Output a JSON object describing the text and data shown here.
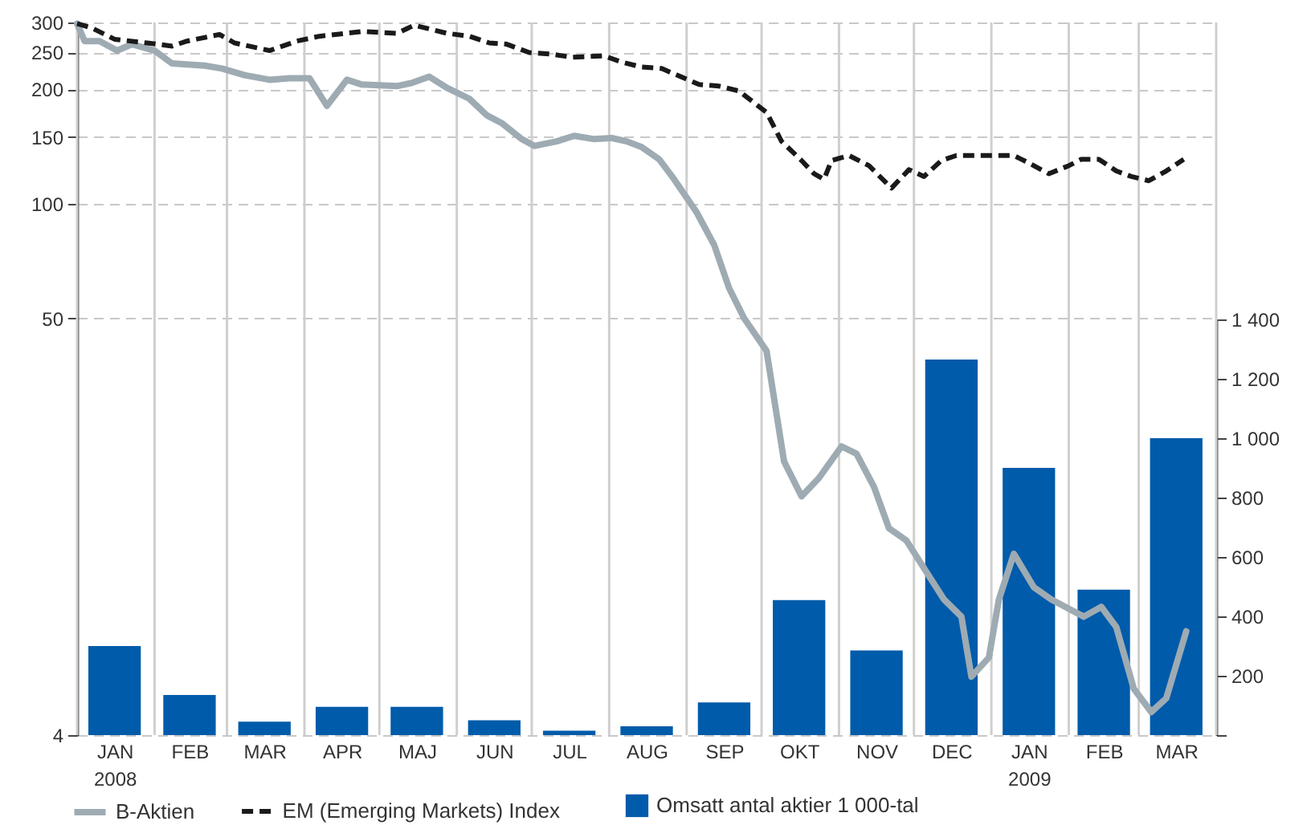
{
  "chart_data": {
    "type": "line",
    "log": true,
    "grid": true,
    "legend": "bottom",
    "marker": "none",
    "xlim": [
      "2008-01-01",
      "2009-04-01"
    ],
    "xticks": [
      {
        "value": "2008-01-01",
        "label": null
      },
      {
        "value": "2008-02-01",
        "label": null
      },
      {
        "value": "2008-03-01",
        "label": null
      },
      {
        "value": "2008-04-01",
        "label": null
      },
      {
        "value": "2008-05-01",
        "label": null
      },
      {
        "value": "2008-06-01",
        "label": null
      },
      {
        "value": "2008-07-01",
        "label": null
      },
      {
        "value": "2008-08-01",
        "label": null
      },
      {
        "value": "2008-09-01",
        "label": null
      },
      {
        "value": "2008-10-01",
        "label": null
      },
      {
        "value": "2008-11-01",
        "label": null
      },
      {
        "value": "2008-12-01",
        "label": null
      },
      {
        "value": "2009-01-01",
        "label": null
      },
      {
        "value": "2009-02-01",
        "label": null
      },
      {
        "value": "2009-03-01",
        "label": null
      },
      {
        "value": "2009-04-01",
        "label": null
      },
      {
        "value": "2008-01-16",
        "label": "JAN\n2008"
      },
      {
        "value": "2008-02-15",
        "label": "FEB"
      },
      {
        "value": "2008-03-16",
        "label": "MAR"
      },
      {
        "value": "2008-04-16",
        "label": "APR"
      },
      {
        "value": "2008-05-16",
        "label": "MAJ"
      },
      {
        "value": "2008-06-16",
        "label": "JUN"
      },
      {
        "value": "2008-07-16",
        "label": "JUL"
      },
      {
        "value": "2008-08-16",
        "label": "AUG"
      },
      {
        "value": "2008-09-16",
        "label": "SEP"
      },
      {
        "value": "2008-10-16",
        "label": "OKT"
      },
      {
        "value": "2008-11-16",
        "label": "NOV"
      },
      {
        "value": "2008-12-16",
        "label": "DEC"
      },
      {
        "value": "2009-01-16",
        "label": "JAN\n2009"
      },
      {
        "value": "2009-02-15",
        "label": "FEB"
      },
      {
        "value": "2009-03-16",
        "label": "MAR"
      }
    ],
    "ylim": [
      4,
      300
    ],
    "yticks": [
      4,
      50,
      100,
      150,
      200,
      250,
      300
    ],
    "y2lim": [
      0,
      1400
    ],
    "y2ticks": [
      {
        "value": 0,
        "label": null
      },
      {
        "value": 200,
        "label": "200"
      },
      {
        "value": 400,
        "label": "400"
      },
      {
        "value": 600,
        "label": "600"
      },
      {
        "value": 800,
        "label": "800"
      },
      {
        "value": 1000,
        "label": "1 000"
      },
      {
        "value": 1200,
        "label": "1 200"
      },
      {
        "value": 1400,
        "label": "1 400"
      }
    ],
    "series": [
      {
        "name": "Omsatt antal aktier 1 000-tal",
        "type": "bar",
        "axis": "y2",
        "color": "#005baa",
        "x": [
          "2008-01-16",
          "2008-02-15",
          "2008-03-16",
          "2008-04-16",
          "2008-05-16",
          "2008-06-16",
          "2008-07-16",
          "2008-08-16",
          "2008-09-16",
          "2008-10-16",
          "2008-11-16",
          "2008-12-16",
          "2009-01-16",
          "2009-02-15",
          "2009-03-16"
        ],
        "values": [
          300,
          135,
          45,
          95,
          95,
          50,
          15,
          30,
          110,
          455,
          285,
          1265,
          900,
          490,
          1000
        ]
      },
      {
        "name": "B-Aktien",
        "line_style": "solid",
        "color": "#9eabb3",
        "x": [
          "2008-01-01",
          "2008-01-04",
          "2008-01-10",
          "2008-01-17",
          "2008-01-23",
          "2008-02-01",
          "2008-02-08",
          "2008-02-21",
          "2008-02-28",
          "2008-03-08",
          "2008-03-18",
          "2008-03-26",
          "2008-04-03",
          "2008-04-10",
          "2008-04-18",
          "2008-04-24",
          "2008-05-08",
          "2008-05-14",
          "2008-05-21",
          "2008-05-28",
          "2008-06-06",
          "2008-06-13",
          "2008-06-19",
          "2008-06-27",
          "2008-07-02",
          "2008-07-11",
          "2008-07-18",
          "2008-07-26",
          "2008-08-02",
          "2008-08-08",
          "2008-08-14",
          "2008-08-21",
          "2008-08-27",
          "2008-09-05",
          "2008-09-12",
          "2008-09-18",
          "2008-09-24",
          "2008-10-03",
          "2008-10-10",
          "2008-10-17",
          "2008-10-24",
          "2008-11-02",
          "2008-11-08",
          "2008-11-15",
          "2008-11-21",
          "2008-11-28",
          "2008-12-05",
          "2008-12-13",
          "2008-12-20",
          "2008-12-24",
          "2008-12-31",
          "2009-01-04",
          "2009-01-10",
          "2009-01-18",
          "2009-01-25",
          "2009-02-07",
          "2009-02-14",
          "2009-02-20",
          "2009-02-27",
          "2009-03-06",
          "2009-03-12",
          "2009-03-20"
        ],
        "values": [
          298,
          268,
          268,
          253,
          263,
          253,
          234,
          231,
          227,
          218,
          212,
          214,
          214,
          181,
          212,
          206,
          204,
          208,
          216,
          202,
          189,
          171,
          163,
          148,
          142,
          146,
          151,
          148,
          149,
          146,
          141,
          131,
          116,
          95,
          78,
          60,
          50,
          41,
          21,
          17,
          19,
          23,
          22,
          18,
          14,
          13,
          11,
          9.1,
          8.2,
          5.7,
          6.4,
          9.1,
          12,
          9.8,
          9.1,
          8.2,
          8.7,
          7.7,
          5.3,
          4.6,
          5.0,
          7.5
        ]
      },
      {
        "name": "EM (Emerging Markets) Index",
        "line_style": "dashed",
        "color": "#1a1a1a",
        "x": [
          "2008-01-01",
          "2008-01-07",
          "2008-01-16",
          "2008-01-29",
          "2008-02-08",
          "2008-02-14",
          "2008-02-27",
          "2008-03-04",
          "2008-03-18",
          "2008-03-29",
          "2008-04-07",
          "2008-04-24",
          "2008-05-08",
          "2008-05-15",
          "2008-05-28",
          "2008-06-06",
          "2008-06-14",
          "2008-06-21",
          "2008-06-30",
          "2008-07-08",
          "2008-07-17",
          "2008-07-30",
          "2008-08-06",
          "2008-08-14",
          "2008-08-22",
          "2008-09-06",
          "2008-09-14",
          "2008-09-22",
          "2008-10-03",
          "2008-10-09",
          "2008-10-17",
          "2008-10-22",
          "2008-10-26",
          "2008-10-29",
          "2008-11-05",
          "2008-11-13",
          "2008-11-22",
          "2008-11-29",
          "2008-12-05",
          "2008-12-12",
          "2008-12-18",
          "2009-01-02",
          "2009-01-10",
          "2009-01-16",
          "2009-01-24",
          "2009-02-01",
          "2009-02-06",
          "2009-02-13",
          "2009-02-20",
          "2009-02-26",
          "2009-03-05",
          "2009-03-12",
          "2009-03-19"
        ],
        "values": [
          298,
          290,
          271,
          265,
          260,
          268,
          279,
          265,
          253,
          268,
          276,
          284,
          281,
          295,
          281,
          276,
          265,
          263,
          250,
          248,
          243,
          245,
          236,
          229,
          227,
          206,
          204,
          198,
          174,
          146,
          130,
          120,
          116,
          130,
          134,
          126,
          110,
          123,
          118,
          130,
          134,
          134,
          134,
          128,
          120,
          126,
          131,
          131,
          122,
          118,
          115,
          122,
          131
        ]
      }
    ]
  }
}
